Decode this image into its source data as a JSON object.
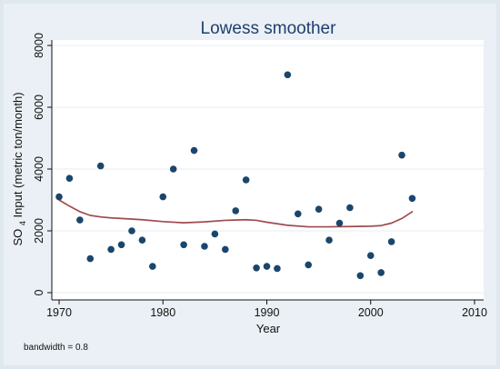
{
  "chart_data": {
    "type": "scatter",
    "title": "Lowess smoother",
    "xlabel": "Year",
    "ylabel_main": "SO",
    "ylabel_sub": "4",
    "ylabel_rest": " Input (metric ton/month)",
    "xlim": [
      1970,
      2010
    ],
    "ylim": [
      0,
      8000
    ],
    "xticks": [
      1970,
      1980,
      1990,
      2000,
      2010
    ],
    "yticks": [
      0,
      2000,
      4000,
      6000,
      8000
    ],
    "grid": "horizontal",
    "note_label": "bandwidth = ",
    "note_value": "0.8",
    "colors": {
      "background": "#ffffff",
      "outer_background": "#dfe8ef",
      "points": "#1a466c",
      "smoother": "#a04a4d",
      "grid": "#e7edf3",
      "title": "#1f3f6e"
    },
    "series": [
      {
        "kind": "points",
        "x": [
          1970,
          1971,
          1972,
          1973,
          1974,
          1975,
          1976,
          1977,
          1978,
          1979,
          1980,
          1981,
          1982,
          1983,
          1984,
          1985,
          1986,
          1987,
          1988,
          1989,
          1990,
          1991,
          1992,
          1993,
          1994,
          1995,
          1996,
          1997,
          1998,
          1999,
          2000,
          2001,
          2002,
          2003,
          2004
        ],
        "y": [
          3100,
          3700,
          2350,
          1100,
          4100,
          1400,
          1550,
          2000,
          1700,
          850,
          3100,
          4000,
          1550,
          4600,
          1500,
          1900,
          1400,
          2650,
          3650,
          800,
          850,
          780,
          7050,
          2550,
          900,
          2700,
          1700,
          2250,
          2750,
          550,
          1200,
          650,
          1650,
          4450,
          3050
        ]
      },
      {
        "kind": "line",
        "x": [
          1970,
          1971,
          1972,
          1973,
          1974,
          1975,
          1976,
          1978,
          1980,
          1982,
          1984,
          1986,
          1988,
          1989,
          1990,
          1992,
          1994,
          1996,
          1998,
          2000,
          2001,
          2002,
          2003,
          2004
        ],
        "y": [
          3000,
          2800,
          2620,
          2500,
          2450,
          2420,
          2400,
          2360,
          2300,
          2260,
          2290,
          2340,
          2360,
          2340,
          2280,
          2180,
          2130,
          2130,
          2140,
          2150,
          2170,
          2250,
          2400,
          2620
        ]
      }
    ]
  }
}
